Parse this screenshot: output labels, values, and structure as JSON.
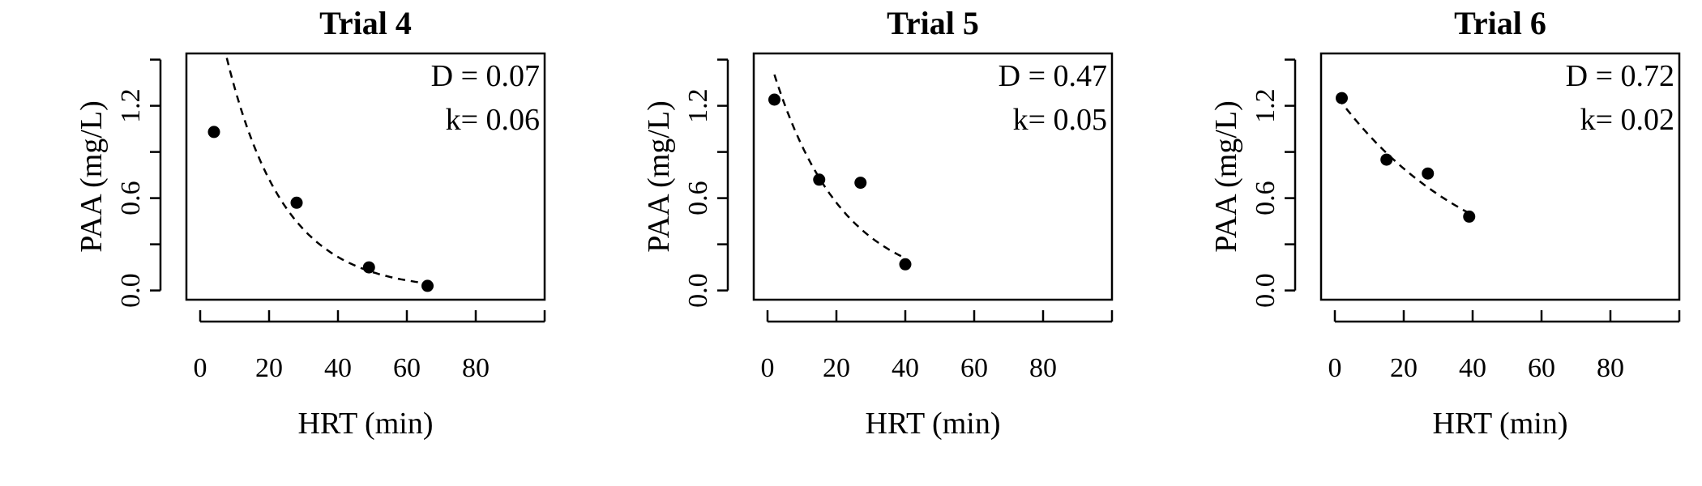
{
  "chart_data": [
    {
      "type": "scatter",
      "title": "Trial 4",
      "xlabel": "HRT (min)",
      "ylabel": "PAA (mg/L)",
      "xticks": [
        0,
        20,
        40,
        60,
        80
      ],
      "yticks": [
        "0.0",
        "0.6",
        "1.2"
      ],
      "xlim": [
        -4,
        100
      ],
      "ylim": [
        -0.06,
        1.54
      ],
      "points": [
        {
          "x": 4,
          "y": 1.03
        },
        {
          "x": 28,
          "y": 0.57
        },
        {
          "x": 49,
          "y": 0.15
        },
        {
          "x": 66,
          "y": 0.03
        }
      ],
      "fit": {
        "c0": 2.4,
        "k": 0.06,
        "x_start": 3,
        "x_end": 68
      },
      "annotations": [
        "D = 0.07",
        "k= 0.06"
      ]
    },
    {
      "type": "scatter",
      "title": "Trial 5",
      "xlabel": "HRT (min)",
      "ylabel": "PAA (mg/L)",
      "xticks": [
        0,
        20,
        40,
        60,
        80
      ],
      "yticks": [
        "0.0",
        "0.6",
        "1.2"
      ],
      "xlim": [
        -4,
        100
      ],
      "ylim": [
        -0.06,
        1.54
      ],
      "points": [
        {
          "x": 2,
          "y": 1.24
        },
        {
          "x": 15,
          "y": 0.72
        },
        {
          "x": 27,
          "y": 0.7
        },
        {
          "x": 40,
          "y": 0.17
        }
      ],
      "fit": {
        "c0": 1.55,
        "k": 0.05,
        "x_start": 2,
        "x_end": 40
      },
      "annotations": [
        "D = 0.47",
        "k= 0.05"
      ]
    },
    {
      "type": "scatter",
      "title": "Trial 6",
      "xlabel": "HRT (min)",
      "ylabel": "PAA (mg/L)",
      "xticks": [
        0,
        20,
        40,
        60,
        80
      ],
      "yticks": [
        "0.0",
        "0.6",
        "1.2"
      ],
      "xlim": [
        -4,
        100
      ],
      "ylim": [
        -0.06,
        1.54
      ],
      "points": [
        {
          "x": 2,
          "y": 1.25
        },
        {
          "x": 15,
          "y": 0.85
        },
        {
          "x": 27,
          "y": 0.76
        },
        {
          "x": 39,
          "y": 0.48
        }
      ],
      "fit": {
        "c0": 1.28,
        "k": 0.024,
        "x_start": 1,
        "x_end": 40
      },
      "annotations": [
        "D = 0.72",
        "k= 0.02"
      ]
    }
  ]
}
